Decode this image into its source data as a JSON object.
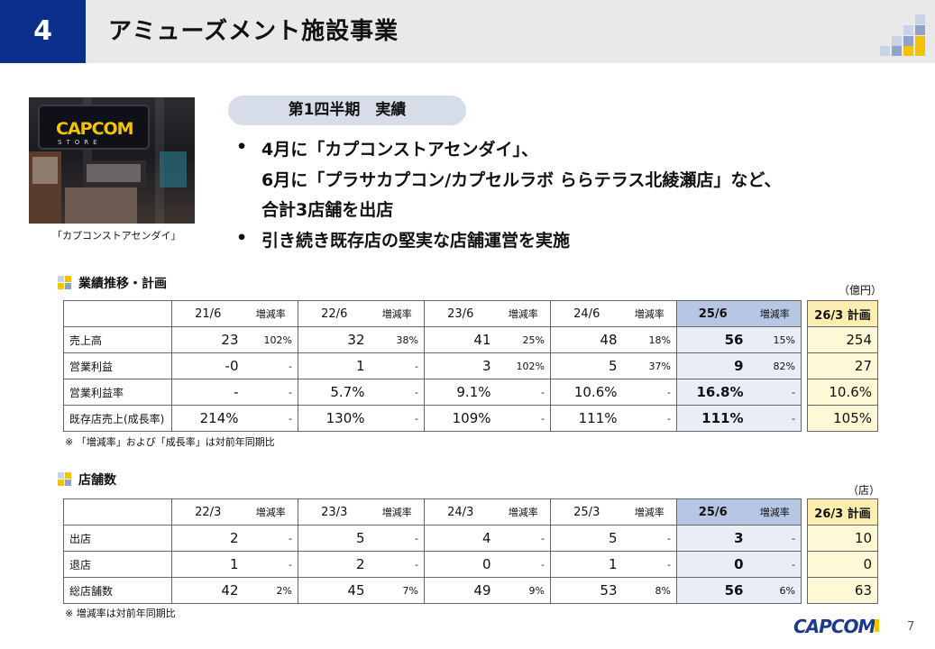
{
  "header": {
    "section_number": "4",
    "title": "アミューズメント施設事業"
  },
  "photo": {
    "logo": "CAPCOM",
    "store_word": "STORE",
    "caption": "「カプコンストアセンダイ」"
  },
  "summary": {
    "pill": "第1四半期　実績",
    "bullet_mark": "•",
    "lines": [
      "4月に「カプコンストアセンダイ」、",
      "6月に「プラサカプコン/カプセルラボ ららテラス北綾瀬店」など、",
      "合計3店舗を出店",
      "引き続き既存店の堅実な店舗運営を実施"
    ]
  },
  "performance": {
    "title": "業績推移・計画",
    "unit": "（億円）",
    "change_header": "増減率",
    "periods": [
      "21/6",
      "22/6",
      "23/6",
      "24/6",
      "25/6"
    ],
    "plan_header": "26/3 計画",
    "rows": [
      {
        "label": "売上高",
        "values": [
          "23",
          "32",
          "41",
          "48",
          "56"
        ],
        "changes": [
          "102%",
          "38%",
          "25%",
          "18%",
          "15%"
        ],
        "plan": "254"
      },
      {
        "label": "営業利益",
        "values": [
          "-0",
          "1",
          "3",
          "5",
          "9"
        ],
        "changes": [
          "-",
          "-",
          "102%",
          "37%",
          "82%"
        ],
        "plan": "27"
      },
      {
        "label": "営業利益率",
        "values": [
          "-",
          "5.7%",
          "9.1%",
          "10.6%",
          "16.8%"
        ],
        "changes": [
          "-",
          "-",
          "-",
          "-",
          "-"
        ],
        "plan": "10.6%"
      },
      {
        "label": "既存店売上(成長率)",
        "values": [
          "214%",
          "130%",
          "109%",
          "111%",
          "111%"
        ],
        "changes": [
          "-",
          "-",
          "-",
          "-",
          "-"
        ],
        "plan": "105%"
      }
    ],
    "note": "※ 「増減率」および「成長率」は対前年同期比"
  },
  "stores": {
    "title": "店舗数",
    "unit": "（店）",
    "change_header": "増減率",
    "periods": [
      "22/3",
      "23/3",
      "24/3",
      "25/3",
      "25/6"
    ],
    "plan_header": "26/3 計画",
    "rows": [
      {
        "label": "出店",
        "values": [
          "2",
          "5",
          "4",
          "5",
          "3"
        ],
        "changes": [
          "-",
          "-",
          "-",
          "-",
          "-"
        ],
        "plan": "10"
      },
      {
        "label": "退店",
        "values": [
          "1",
          "2",
          "0",
          "1",
          "0"
        ],
        "changes": [
          "-",
          "-",
          "-",
          "-",
          "-"
        ],
        "plan": "0"
      },
      {
        "label": "総店舗数",
        "values": [
          "42",
          "45",
          "49",
          "53",
          "56"
        ],
        "changes": [
          "2%",
          "7%",
          "9%",
          "8%",
          "6%"
        ],
        "plan": "63"
      }
    ],
    "note": "※ 増減率は対前年同期比"
  },
  "footer": {
    "brand": "CAPCOM",
    "page_number": "7"
  },
  "colors": {
    "header_blue": "#0d2f8c",
    "highlight_blue": "#b7c6e2",
    "plan_yellow": "#fbeeb0",
    "accent_yellow": "#f2c400"
  }
}
